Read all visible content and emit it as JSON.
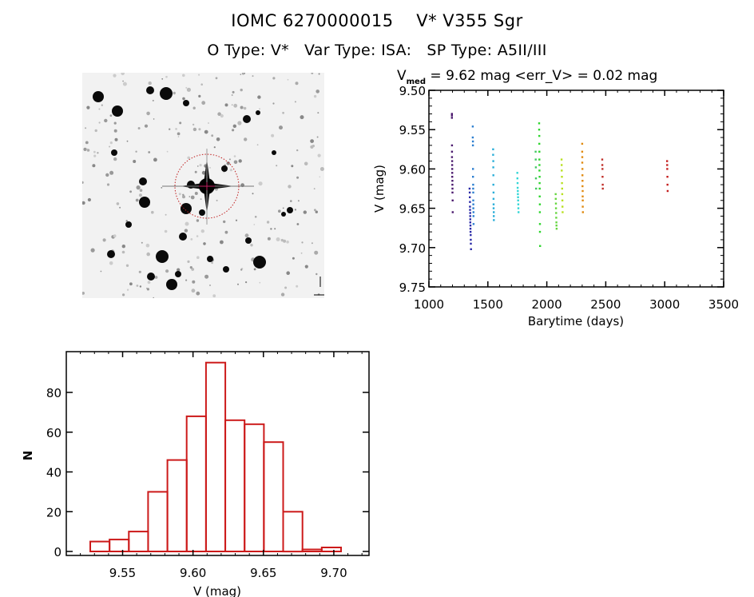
{
  "header": {
    "title_line1": "IOMC 6270000015    V* V355 Sgr",
    "title_line2": "O Type: V*   Var Type: ISA:   SP Type: A5II/III"
  },
  "finder_chart": {
    "description": "DSS finder chart image centered on target",
    "marker": "red dotted circle with crosshair on target",
    "marker_color": "#cc2222"
  },
  "chart_data": [
    {
      "type": "scatter",
      "name": "light-curve",
      "title_prefix": "V",
      "title_sub": "med",
      "title_rest": " = 9.62 mag <err_V> = 0.02 mag",
      "xlabel": "Barytime (days)",
      "ylabel": "V (mag)",
      "xlim": [
        1000,
        3500
      ],
      "ylim": [
        9.5,
        9.75
      ],
      "y_inverted": true,
      "x_ticks": [
        1000,
        1500,
        2000,
        2500,
        3000,
        3500
      ],
      "x_tick_labels": [
        "1000",
        "1500",
        "2000",
        "2500",
        "3000",
        "3500"
      ],
      "y_ticks": [
        9.5,
        9.55,
        9.6,
        9.65,
        9.7,
        9.75
      ],
      "y_tick_labels": [
        "9.50",
        "9.55",
        "9.60",
        "9.65",
        "9.70",
        "9.75"
      ],
      "grid": false,
      "series": [
        {
          "name": "season-1",
          "color": "#4b1a6e",
          "x": [
            1195,
            1195,
            1195,
            1196,
            1196,
            1196,
            1197,
            1197,
            1198,
            1198,
            1198,
            1199,
            1199,
            1200,
            1200,
            1201,
            1202
          ],
          "y": [
            9.53,
            9.532,
            9.535,
            9.57,
            9.578,
            9.585,
            9.59,
            9.595,
            9.6,
            9.605,
            9.61,
            9.615,
            9.62,
            9.625,
            9.63,
            9.64,
            9.655
          ]
        },
        {
          "name": "season-2",
          "color": "#2a2aa8",
          "x": [
            1345,
            1346,
            1347,
            1348,
            1348,
            1349,
            1350,
            1350,
            1351,
            1351,
            1352,
            1352,
            1353,
            1354,
            1355,
            1356,
            1357
          ],
          "y": [
            9.625,
            9.63,
            9.636,
            9.642,
            9.648,
            9.652,
            9.656,
            9.66,
            9.664,
            9.668,
            9.672,
            9.676,
            9.68,
            9.684,
            9.69,
            9.695,
            9.702
          ]
        },
        {
          "name": "season-3",
          "color": "#2d7fd0",
          "x": [
            1372,
            1372,
            1373,
            1373,
            1374,
            1374,
            1375,
            1375,
            1376,
            1376,
            1377,
            1377,
            1378,
            1378,
            1379
          ],
          "y": [
            9.546,
            9.56,
            9.565,
            9.57,
            9.6,
            9.61,
            9.62,
            9.625,
            9.63,
            9.64,
            9.645,
            9.65,
            9.655,
            9.66,
            9.67
          ]
        },
        {
          "name": "season-4",
          "color": "#2aaed8",
          "x": [
            1545,
            1545,
            1546,
            1546,
            1547,
            1547,
            1548,
            1548,
            1549,
            1549,
            1550,
            1550,
            1551
          ],
          "y": [
            9.575,
            9.582,
            9.59,
            9.598,
            9.608,
            9.62,
            9.63,
            9.638,
            9.645,
            9.65,
            9.655,
            9.66,
            9.665
          ]
        },
        {
          "name": "season-5",
          "color": "#33d6d6",
          "x": [
            1750,
            1751,
            1752,
            1753,
            1754,
            1755,
            1756,
            1757,
            1758,
            1759,
            1760
          ],
          "y": [
            9.605,
            9.612,
            9.618,
            9.624,
            9.628,
            9.632,
            9.636,
            9.64,
            9.645,
            9.65,
            9.655
          ]
        },
        {
          "name": "season-6",
          "color": "#44c864",
          "x": [
            1905,
            1906,
            1907,
            1908,
            1909
          ],
          "y": [
            9.578,
            9.588,
            9.598,
            9.612,
            9.625
          ]
        },
        {
          "name": "season-7",
          "color": "#2ed62e",
          "x": [
            1935,
            1935,
            1936,
            1936,
            1937,
            1937,
            1938,
            1938,
            1939,
            1939,
            1940,
            1940,
            1941,
            1941,
            1942,
            1942,
            1943
          ],
          "y": [
            9.542,
            9.55,
            9.558,
            9.568,
            9.578,
            9.588,
            9.595,
            9.602,
            9.61,
            9.618,
            9.625,
            9.635,
            9.645,
            9.655,
            9.67,
            9.68,
            9.698
          ]
        },
        {
          "name": "season-8",
          "color": "#66d640",
          "x": [
            2075,
            2076,
            2077,
            2078,
            2079,
            2080,
            2081,
            2082,
            2083
          ],
          "y": [
            9.632,
            9.638,
            9.644,
            9.65,
            9.656,
            9.662,
            9.668,
            9.672,
            9.676
          ]
        },
        {
          "name": "season-9",
          "color": "#b8e020",
          "x": [
            2125,
            2126,
            2127,
            2128,
            2129,
            2130,
            2131,
            2132,
            2133,
            2134
          ],
          "y": [
            9.588,
            9.595,
            9.602,
            9.61,
            9.618,
            9.625,
            9.632,
            9.64,
            9.648,
            9.655
          ]
        },
        {
          "name": "season-10",
          "color": "#e08a10",
          "x": [
            2300,
            2300,
            2301,
            2301,
            2302,
            2302,
            2303,
            2303,
            2304,
            2304,
            2305,
            2305,
            2306
          ],
          "y": [
            9.568,
            9.578,
            9.585,
            9.592,
            9.6,
            9.608,
            9.615,
            9.622,
            9.628,
            9.635,
            9.64,
            9.648,
            9.655
          ]
        },
        {
          "name": "season-11",
          "color": "#c0302a",
          "x": [
            2470,
            2471,
            2472,
            2473,
            2474,
            2475
          ],
          "y": [
            9.588,
            9.595,
            9.6,
            9.61,
            9.62,
            9.625
          ]
        },
        {
          "name": "season-12",
          "color": "#c41e1e",
          "x": [
            3020,
            3021,
            3022,
            3023,
            3024,
            3025
          ],
          "y": [
            9.59,
            9.595,
            9.6,
            9.61,
            9.62,
            9.628
          ]
        }
      ]
    },
    {
      "type": "bar",
      "name": "magnitude-histogram",
      "xlabel": "V (mag)",
      "ylabel": "N",
      "xlim": [
        9.51,
        9.725
      ],
      "ylim": [
        0,
        100
      ],
      "x_ticks": [
        9.55,
        9.6,
        9.65,
        9.7
      ],
      "x_tick_labels": [
        "9.55",
        "9.60",
        "9.65",
        "9.70"
      ],
      "y_ticks": [
        0,
        20,
        40,
        60,
        80
      ],
      "y_tick_labels": [
        "0",
        "20",
        "40",
        "60",
        "80"
      ],
      "bar_color": "#cc1a1a",
      "bin_start": 9.527,
      "bin_width": 0.0137,
      "values": [
        5,
        6,
        10,
        30,
        46,
        68,
        95,
        66,
        64,
        55,
        20,
        1,
        2
      ]
    }
  ]
}
